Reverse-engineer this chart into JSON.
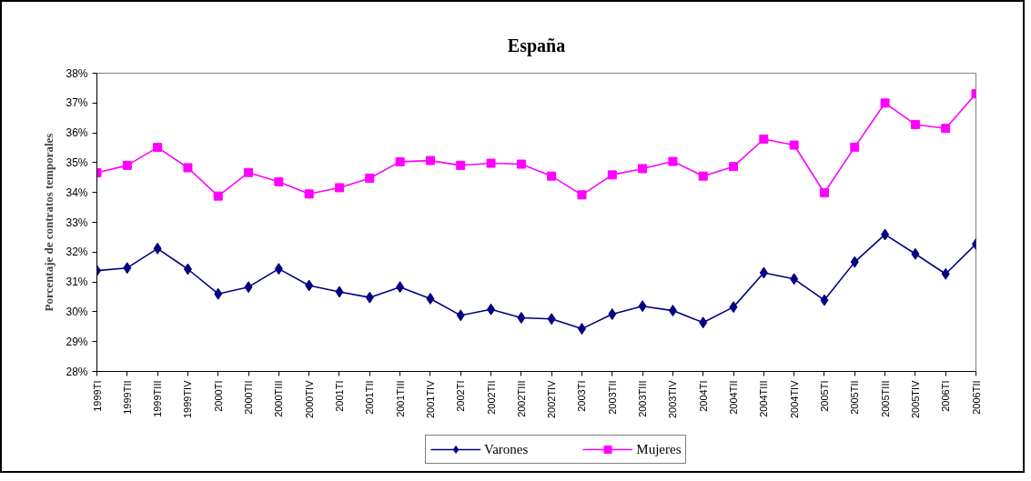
{
  "chart_data": {
    "type": "line",
    "title": "España",
    "ylabel": "Porcentaje de contratos temporales",
    "categories": [
      "1999TI",
      "1999TII",
      "1999TIII",
      "1999TIV",
      "2000TI",
      "2000TII",
      "2000TIII",
      "2000TIV",
      "2001TI",
      "2001TII",
      "2001TIII",
      "2001TIV",
      "2002TI",
      "2002TII",
      "2002TIII",
      "2002TIV",
      "2003TI",
      "2003TII",
      "2003TIII",
      "2003TIV",
      "2004TI",
      "2004TII",
      "2004TIII",
      "2004TIV",
      "2005TI",
      "2005TII",
      "2005TIII",
      "2005TIV",
      "2006TI",
      "2006TII"
    ],
    "series": [
      {
        "name": "Varones",
        "color": "#000080",
        "marker": "diamond",
        "values": [
          31.38,
          31.47,
          32.12,
          31.43,
          30.6,
          30.83,
          31.44,
          30.88,
          30.67,
          30.48,
          30.83,
          30.44,
          29.88,
          30.08,
          29.8,
          29.76,
          29.43,
          29.92,
          30.19,
          30.04,
          29.64,
          30.16,
          31.31,
          31.1,
          30.39,
          31.67,
          32.59,
          31.94,
          31.27,
          32.27
        ]
      },
      {
        "name": "Mujeres",
        "color": "#ff00ff",
        "marker": "square",
        "values": [
          34.66,
          34.91,
          35.51,
          34.83,
          33.88,
          34.67,
          34.36,
          33.95,
          34.16,
          34.48,
          35.03,
          35.07,
          34.91,
          34.98,
          34.95,
          34.55,
          33.92,
          34.59,
          34.8,
          35.04,
          34.55,
          34.87,
          35.79,
          35.59,
          33.99,
          35.52,
          37.0,
          36.28,
          36.15,
          37.31
        ]
      }
    ],
    "ylim": [
      28,
      38
    ],
    "yticks": [
      {
        "value": 28,
        "label": "28%"
      },
      {
        "value": 29,
        "label": "29%"
      },
      {
        "value": 30,
        "label": "30%"
      },
      {
        "value": 31,
        "label": "31%"
      },
      {
        "value": 32,
        "label": "32%"
      },
      {
        "value": 33,
        "label": "33%"
      },
      {
        "value": 34,
        "label": "34%"
      },
      {
        "value": 35,
        "label": "35%"
      },
      {
        "value": 36,
        "label": "36%"
      },
      {
        "value": 37,
        "label": "37%"
      },
      {
        "value": 38,
        "label": "38%"
      }
    ],
    "legend": "bottom",
    "line_style": "solid"
  }
}
